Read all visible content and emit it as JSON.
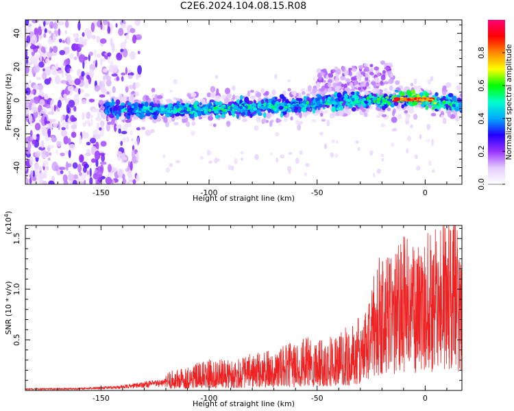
{
  "title": "C2E6.2024.104.08.15.R08",
  "chart_data": [
    {
      "type": "heatmap",
      "title": "C2E6.2024.104.08.15.R08",
      "xlabel": "Height of straight line (km)",
      "ylabel": "Frequency (Hz)",
      "xlim": [
        -185,
        17
      ],
      "ylim": [
        -50,
        48
      ],
      "x_ticks": [
        -150,
        -100,
        -50,
        0
      ],
      "y_ticks": [
        -40,
        -20,
        0,
        20,
        40
      ],
      "colorbar": {
        "label": "Normalized spectral amplitude",
        "range": [
          0,
          1
        ],
        "ticks": [
          "0.0",
          "0.2",
          "0.4",
          "0.6",
          "0.8"
        ],
        "colors": [
          "#ffffff",
          "#e5ccff",
          "#9933ff",
          "#2200ff",
          "#00aaff",
          "#00ffcc",
          "#00ff00",
          "#ffff00",
          "#ff8800",
          "#ff0000",
          "#ff0077"
        ]
      },
      "ridge": {
        "description_x": [
          -145,
          -120,
          -100,
          -80,
          -60,
          -40,
          -25,
          -10,
          0,
          10,
          17
        ],
        "center_hz": [
          -5,
          -6,
          -5,
          -4,
          -3,
          -1,
          0,
          1,
          0,
          -2,
          -3
        ],
        "peak_amplitude": [
          0.35,
          0.45,
          0.5,
          0.5,
          0.5,
          0.5,
          0.55,
          0.85,
          0.9,
          0.6,
          0.5
        ]
      },
      "noise_region_x": [
        -185,
        -140
      ]
    },
    {
      "type": "line",
      "xlabel": "Height of straight line (km)",
      "ylabel": "SNR (10 * v/v)",
      "y_multiplier": "(x10^4)",
      "xlim": [
        -185,
        17
      ],
      "ylim": [
        0,
        16300
      ],
      "x_ticks": [
        -150,
        -100,
        -50,
        0
      ],
      "y_ticks": [
        {
          "value": 5000,
          "label": "0.5"
        },
        {
          "value": 10000,
          "label": "1.0"
        },
        {
          "value": 15000,
          "label": "1.5"
        }
      ],
      "series": [
        {
          "color": "#ee2222",
          "envelope_x": [
            -185,
            -160,
            -140,
            -130,
            -120,
            -110,
            -100,
            -90,
            -80,
            -70,
            -60,
            -50,
            -40,
            -30,
            -25,
            -20,
            -15,
            -10,
            -5,
            0,
            5,
            10,
            13,
            15,
            17
          ],
          "envelope_y": [
            150,
            200,
            400,
            700,
            900,
            1200,
            1500,
            1500,
            1800,
            2000,
            2400,
            2700,
            2800,
            3600,
            6000,
            8000,
            7500,
            9000,
            8000,
            8800,
            9200,
            9500,
            11000,
            9000,
            7000
          ],
          "peaks": [
            {
              "x": 14,
              "y": 16300
            },
            {
              "x": -21,
              "y": 10800
            },
            {
              "x": -16,
              "y": 12500
            },
            {
              "x": -2,
              "y": 13300
            },
            {
              "x": 5,
              "y": 11200
            },
            {
              "x": 12,
              "y": 9800
            }
          ]
        }
      ]
    }
  ]
}
